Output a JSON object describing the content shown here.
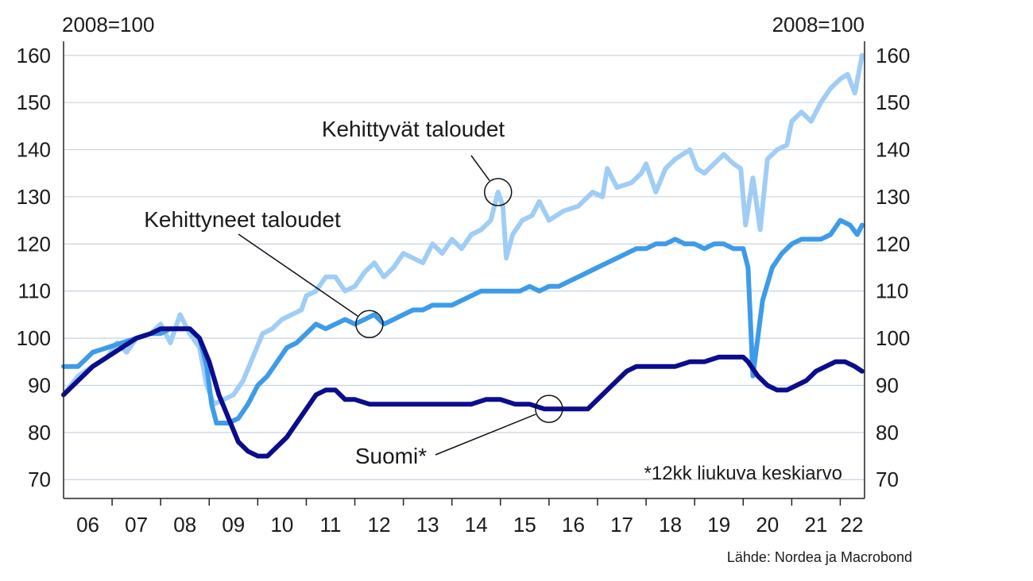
{
  "chart_data": {
    "type": "line",
    "left_unit": "2008=100",
    "right_unit": "2008=100",
    "x_tick_labels": [
      "06",
      "07",
      "08",
      "09",
      "10",
      "11",
      "12",
      "13",
      "14",
      "15",
      "16",
      "17",
      "18",
      "19",
      "20",
      "21",
      "22"
    ],
    "x_range": [
      2006.0,
      2022.5
    ],
    "ylim": [
      66,
      163
    ],
    "y_ticks": [
      70,
      80,
      90,
      100,
      110,
      120,
      130,
      140,
      150,
      160
    ],
    "grid": true,
    "note": "*12kk liukuva keskiarvo",
    "source": "Lähde: Nordea ja Macrobond",
    "series": [
      {
        "name": "Kehittyvät taloudet",
        "color": "#9fcdf5",
        "points": [
          [
            2006.0,
            88
          ],
          [
            2006.3,
            92
          ],
          [
            2006.6,
            94
          ],
          [
            2006.9,
            96
          ],
          [
            2007.1,
            99
          ],
          [
            2007.3,
            97
          ],
          [
            2007.5,
            100
          ],
          [
            2007.8,
            101
          ],
          [
            2008.0,
            103
          ],
          [
            2008.2,
            99
          ],
          [
            2008.4,
            105
          ],
          [
            2008.6,
            101
          ],
          [
            2008.8,
            98
          ],
          [
            2008.95,
            90
          ],
          [
            2009.1,
            86
          ],
          [
            2009.3,
            87
          ],
          [
            2009.5,
            88
          ],
          [
            2009.7,
            91
          ],
          [
            2009.9,
            96
          ],
          [
            2010.1,
            101
          ],
          [
            2010.3,
            102
          ],
          [
            2010.5,
            104
          ],
          [
            2010.7,
            105
          ],
          [
            2010.9,
            106
          ],
          [
            2011.0,
            109
          ],
          [
            2011.2,
            110
          ],
          [
            2011.4,
            113
          ],
          [
            2011.6,
            113
          ],
          [
            2011.8,
            110
          ],
          [
            2012.0,
            111
          ],
          [
            2012.2,
            114
          ],
          [
            2012.4,
            116
          ],
          [
            2012.6,
            113
          ],
          [
            2012.8,
            115
          ],
          [
            2013.0,
            118
          ],
          [
            2013.2,
            117
          ],
          [
            2013.4,
            116
          ],
          [
            2013.6,
            120
          ],
          [
            2013.8,
            118
          ],
          [
            2014.0,
            121
          ],
          [
            2014.2,
            119
          ],
          [
            2014.4,
            122
          ],
          [
            2014.6,
            123
          ],
          [
            2014.8,
            125
          ],
          [
            2014.95,
            131
          ],
          [
            2015.05,
            128
          ],
          [
            2015.12,
            117
          ],
          [
            2015.25,
            122
          ],
          [
            2015.45,
            125
          ],
          [
            2015.65,
            126
          ],
          [
            2015.8,
            129
          ],
          [
            2016.0,
            125
          ],
          [
            2016.3,
            127
          ],
          [
            2016.6,
            128
          ],
          [
            2016.9,
            131
          ],
          [
            2017.1,
            130
          ],
          [
            2017.2,
            136
          ],
          [
            2017.4,
            132
          ],
          [
            2017.7,
            133
          ],
          [
            2017.9,
            135
          ],
          [
            2018.0,
            137
          ],
          [
            2018.2,
            131
          ],
          [
            2018.4,
            136
          ],
          [
            2018.6,
            138
          ],
          [
            2018.9,
            140
          ],
          [
            2019.05,
            136
          ],
          [
            2019.2,
            135
          ],
          [
            2019.4,
            137
          ],
          [
            2019.6,
            139
          ],
          [
            2019.8,
            137
          ],
          [
            2019.95,
            136
          ],
          [
            2020.05,
            124
          ],
          [
            2020.2,
            134
          ],
          [
            2020.35,
            123
          ],
          [
            2020.5,
            138
          ],
          [
            2020.7,
            140
          ],
          [
            2020.9,
            141
          ],
          [
            2021.0,
            146
          ],
          [
            2021.2,
            148
          ],
          [
            2021.4,
            146
          ],
          [
            2021.6,
            150
          ],
          [
            2021.8,
            153
          ],
          [
            2022.0,
            155
          ],
          [
            2022.15,
            156
          ],
          [
            2022.3,
            152
          ],
          [
            2022.45,
            160
          ]
        ]
      },
      {
        "name": "Kehittyneet taloudet",
        "color": "#3d9be9",
        "points": [
          [
            2006.0,
            94
          ],
          [
            2006.3,
            94
          ],
          [
            2006.6,
            97
          ],
          [
            2006.9,
            98
          ],
          [
            2007.2,
            99
          ],
          [
            2007.5,
            100
          ],
          [
            2007.8,
            101
          ],
          [
            2008.0,
            101
          ],
          [
            2008.2,
            102
          ],
          [
            2008.4,
            102
          ],
          [
            2008.6,
            102
          ],
          [
            2008.8,
            100
          ],
          [
            2008.95,
            94
          ],
          [
            2009.05,
            86
          ],
          [
            2009.15,
            82
          ],
          [
            2009.4,
            82
          ],
          [
            2009.6,
            83
          ],
          [
            2009.8,
            86
          ],
          [
            2010.0,
            90
          ],
          [
            2010.2,
            92
          ],
          [
            2010.4,
            95
          ],
          [
            2010.6,
            98
          ],
          [
            2010.8,
            99
          ],
          [
            2011.0,
            101
          ],
          [
            2011.2,
            103
          ],
          [
            2011.4,
            102
          ],
          [
            2011.6,
            103
          ],
          [
            2011.8,
            104
          ],
          [
            2012.0,
            103
          ],
          [
            2012.2,
            104
          ],
          [
            2012.4,
            105
          ],
          [
            2012.6,
            103
          ],
          [
            2012.8,
            104
          ],
          [
            2013.0,
            105
          ],
          [
            2013.2,
            106
          ],
          [
            2013.4,
            106
          ],
          [
            2013.6,
            107
          ],
          [
            2013.8,
            107
          ],
          [
            2014.0,
            107
          ],
          [
            2014.2,
            108
          ],
          [
            2014.4,
            109
          ],
          [
            2014.6,
            110
          ],
          [
            2014.8,
            110
          ],
          [
            2015.0,
            110
          ],
          [
            2015.2,
            110
          ],
          [
            2015.4,
            110
          ],
          [
            2015.6,
            111
          ],
          [
            2015.8,
            110
          ],
          [
            2016.0,
            111
          ],
          [
            2016.2,
            111
          ],
          [
            2016.4,
            112
          ],
          [
            2016.6,
            113
          ],
          [
            2016.8,
            114
          ],
          [
            2017.0,
            115
          ],
          [
            2017.2,
            116
          ],
          [
            2017.4,
            117
          ],
          [
            2017.6,
            118
          ],
          [
            2017.8,
            119
          ],
          [
            2018.0,
            119
          ],
          [
            2018.2,
            120
          ],
          [
            2018.4,
            120
          ],
          [
            2018.6,
            121
          ],
          [
            2018.8,
            120
          ],
          [
            2019.0,
            120
          ],
          [
            2019.2,
            119
          ],
          [
            2019.4,
            120
          ],
          [
            2019.6,
            120
          ],
          [
            2019.8,
            119
          ],
          [
            2020.0,
            119
          ],
          [
            2020.1,
            115
          ],
          [
            2020.2,
            92
          ],
          [
            2020.3,
            100
          ],
          [
            2020.4,
            108
          ],
          [
            2020.6,
            115
          ],
          [
            2020.8,
            118
          ],
          [
            2021.0,
            120
          ],
          [
            2021.2,
            121
          ],
          [
            2021.4,
            121
          ],
          [
            2021.6,
            121
          ],
          [
            2021.8,
            122
          ],
          [
            2022.0,
            125
          ],
          [
            2022.2,
            124
          ],
          [
            2022.35,
            122
          ],
          [
            2022.45,
            124
          ]
        ]
      },
      {
        "name": "Suomi*",
        "color": "#0b0d8c",
        "points": [
          [
            2006.0,
            88
          ],
          [
            2006.3,
            91
          ],
          [
            2006.6,
            94
          ],
          [
            2006.9,
            96
          ],
          [
            2007.2,
            98
          ],
          [
            2007.5,
            100
          ],
          [
            2007.8,
            101
          ],
          [
            2008.0,
            102
          ],
          [
            2008.3,
            102
          ],
          [
            2008.6,
            102
          ],
          [
            2008.8,
            100
          ],
          [
            2009.0,
            95
          ],
          [
            2009.2,
            88
          ],
          [
            2009.4,
            83
          ],
          [
            2009.6,
            78
          ],
          [
            2009.8,
            76
          ],
          [
            2010.0,
            75
          ],
          [
            2010.2,
            75
          ],
          [
            2010.4,
            77
          ],
          [
            2010.6,
            79
          ],
          [
            2010.8,
            82
          ],
          [
            2011.0,
            85
          ],
          [
            2011.2,
            88
          ],
          [
            2011.4,
            89
          ],
          [
            2011.6,
            89
          ],
          [
            2011.8,
            87
          ],
          [
            2012.0,
            87
          ],
          [
            2012.3,
            86
          ],
          [
            2012.6,
            86
          ],
          [
            2012.9,
            86
          ],
          [
            2013.2,
            86
          ],
          [
            2013.5,
            86
          ],
          [
            2013.8,
            86
          ],
          [
            2014.1,
            86
          ],
          [
            2014.4,
            86
          ],
          [
            2014.7,
            87
          ],
          [
            2015.0,
            87
          ],
          [
            2015.3,
            86
          ],
          [
            2015.6,
            86
          ],
          [
            2015.9,
            85
          ],
          [
            2016.2,
            85
          ],
          [
            2016.5,
            85
          ],
          [
            2016.8,
            85
          ],
          [
            2017.0,
            87
          ],
          [
            2017.2,
            89
          ],
          [
            2017.4,
            91
          ],
          [
            2017.6,
            93
          ],
          [
            2017.8,
            94
          ],
          [
            2018.0,
            94
          ],
          [
            2018.3,
            94
          ],
          [
            2018.6,
            94
          ],
          [
            2018.9,
            95
          ],
          [
            2019.2,
            95
          ],
          [
            2019.5,
            96
          ],
          [
            2019.8,
            96
          ],
          [
            2020.0,
            96
          ],
          [
            2020.1,
            95
          ],
          [
            2020.3,
            92
          ],
          [
            2020.5,
            90
          ],
          [
            2020.7,
            89
          ],
          [
            2020.9,
            89
          ],
          [
            2021.1,
            90
          ],
          [
            2021.3,
            91
          ],
          [
            2021.5,
            93
          ],
          [
            2021.7,
            94
          ],
          [
            2021.9,
            95
          ],
          [
            2022.1,
            95
          ],
          [
            2022.3,
            94
          ],
          [
            2022.45,
            93
          ]
        ]
      }
    ],
    "annotations": [
      {
        "text": "Kehittyvät taloudet",
        "series": 0,
        "at": [
          2014.95,
          131
        ]
      },
      {
        "text": "Kehittyneet taloudet",
        "series": 1,
        "at": [
          2012.3,
          103
        ]
      },
      {
        "text": "Suomi*",
        "series": 2,
        "at": [
          2016.0,
          85
        ]
      }
    ]
  }
}
